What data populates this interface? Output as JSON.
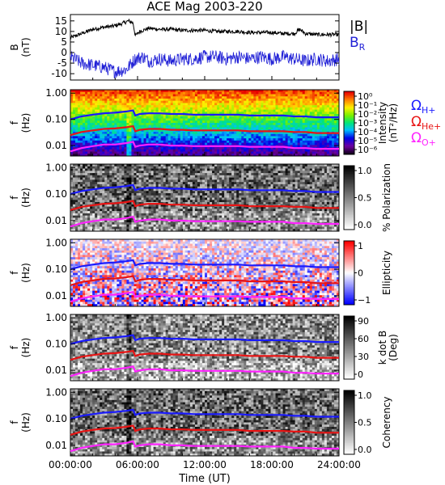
{
  "title": "ACE Mag 2003-220",
  "colors": {
    "Bmag": "#000000",
    "BR": "#1f1fd6",
    "H": "#1a1aff",
    "He": "#e81414",
    "O": "#ff22ff"
  },
  "chart_data": [
    {
      "type": "line",
      "panel": "B",
      "ylabel": "B",
      "yunit": "(nT)",
      "ylim": [
        -13,
        18
      ],
      "yticks": [
        "15",
        "10",
        "5",
        "0",
        "-5",
        "-10"
      ],
      "ytick_values": [
        15,
        10,
        5,
        0,
        -5,
        -10
      ],
      "legend_placement": "right",
      "series": [
        {
          "name": "|B|",
          "color": "#000000",
          "x": [
            0,
            1,
            2,
            3,
            3.8,
            4.5,
            5.2,
            5.6,
            5.8,
            6.2,
            7,
            8,
            9,
            10,
            11,
            12,
            13,
            14,
            15,
            16,
            17,
            18,
            19,
            20,
            20.5,
            21,
            22,
            23,
            24
          ],
          "y": [
            7,
            9,
            11,
            12,
            12.5,
            13.5,
            15,
            14,
            8,
            10,
            11.5,
            11,
            11,
            10.5,
            10.5,
            10.5,
            10,
            10,
            10,
            9.5,
            9.5,
            9.5,
            9,
            9,
            11,
            9,
            8.5,
            8.5,
            8.5
          ]
        },
        {
          "name": "B",
          "subscript": "R",
          "color": "#1f1fd6",
          "x": [
            0,
            1,
            2,
            3,
            4,
            5,
            5.8,
            6.5,
            7,
            8,
            9,
            10,
            11,
            12,
            13,
            14,
            15,
            16,
            17,
            18,
            19,
            20,
            21,
            22,
            23,
            24
          ],
          "y": [
            -2,
            -5,
            -6,
            -7,
            -9,
            -8,
            -3,
            -2,
            -4,
            -3,
            -4,
            -3,
            -3,
            -2,
            -2,
            -3,
            -2,
            -3,
            -2,
            -3,
            -2,
            -3,
            -4,
            -3,
            -4,
            -3
          ]
        }
      ]
    },
    {
      "type": "heatmap",
      "panel": "intensity",
      "ylabel": "f",
      "yunit": "(Hz)",
      "yticks": [
        "1.00",
        "0.10",
        "0.01"
      ],
      "colorbar_label": "Intensity",
      "colorbar_unit": "(nT²/Hz)",
      "colorbar_ticks": [
        "10⁰",
        "10⁻¹",
        "10⁻²",
        "10⁻³",
        "10⁻⁴",
        "10⁻⁵",
        "10⁻⁶"
      ],
      "colorscale": "rainbow",
      "legend": [
        {
          "symbol": "Ω",
          "subscript": "H+",
          "color": "#1a1aff"
        },
        {
          "symbol": "Ω",
          "subscript": "He+",
          "color": "#e81414"
        },
        {
          "symbol": "Ω",
          "subscript": "O+",
          "color": "#ff22ff"
        }
      ]
    },
    {
      "type": "heatmap",
      "panel": "polarization",
      "ylabel": "f",
      "yunit": "(Hz)",
      "yticks": [
        "1.00",
        "0.10",
        "0.01"
      ],
      "colorbar_label": "% Polarization",
      "colorbar_ticks": [
        "1.0",
        "0.5",
        "0.0"
      ],
      "colorscale": "gray"
    },
    {
      "type": "heatmap",
      "panel": "ellipticity",
      "ylabel": "f",
      "yunit": "(Hz)",
      "yticks": [
        "1.00",
        "0.10",
        "0.01"
      ],
      "colorbar_label": "Ellipticity",
      "colorbar_ticks": [
        "1",
        "0",
        "−1"
      ],
      "colorscale": "blue-white-red"
    },
    {
      "type": "heatmap",
      "panel": "kdotb",
      "ylabel": "f",
      "yunit": "(Hz)",
      "yticks": [
        "1.00",
        "0.10",
        "0.01"
      ],
      "colorbar_label": "k dot B",
      "colorbar_unit": "(Deg)",
      "colorbar_ticks": [
        "90",
        "60",
        "30",
        "0"
      ],
      "colorscale": "gray"
    },
    {
      "type": "heatmap",
      "panel": "coherency",
      "ylabel": "f",
      "yunit": "(Hz)",
      "yticks": [
        "1.00",
        "0.10",
        "0.01"
      ],
      "colorbar_label": "Coherency",
      "colorbar_ticks": [
        "1.0",
        "0.5",
        "0.0"
      ],
      "colorscale": "gray"
    }
  ],
  "gyrofrequency_lines": {
    "x": [
      0,
      1,
      2,
      3,
      4,
      5,
      5.6,
      5.8,
      6.2,
      7,
      8,
      9,
      10,
      11,
      12,
      13,
      14,
      15,
      16,
      17,
      18,
      19,
      20,
      21,
      22,
      23,
      24
    ],
    "H_hz": [
      0.1,
      0.13,
      0.15,
      0.17,
      0.18,
      0.2,
      0.22,
      0.14,
      0.16,
      0.17,
      0.17,
      0.16,
      0.16,
      0.15,
      0.15,
      0.15,
      0.15,
      0.15,
      0.14,
      0.14,
      0.14,
      0.14,
      0.13,
      0.13,
      0.12,
      0.12,
      0.12
    ],
    "He_hz": [
      0.025,
      0.033,
      0.038,
      0.043,
      0.045,
      0.05,
      0.055,
      0.035,
      0.04,
      0.043,
      0.043,
      0.04,
      0.04,
      0.038,
      0.038,
      0.038,
      0.038,
      0.038,
      0.035,
      0.035,
      0.035,
      0.035,
      0.033,
      0.033,
      0.03,
      0.03,
      0.03
    ],
    "O_hz": [
      0.006,
      0.008,
      0.0095,
      0.011,
      0.011,
      0.0125,
      0.014,
      0.009,
      0.01,
      0.011,
      0.011,
      0.01,
      0.01,
      0.0095,
      0.0095,
      0.0095,
      0.0095,
      0.0095,
      0.009,
      0.009,
      0.009,
      0.009,
      0.008,
      0.008,
      0.0075,
      0.0075,
      0.0075
    ]
  },
  "xaxis": {
    "label": "Time (UT)",
    "ticks": [
      "00:00:00",
      "06:00:00",
      "12:00:00",
      "18:00:00",
      "24:00:00"
    ],
    "tick_hours": [
      0,
      6,
      12,
      18,
      24
    ],
    "xlim": [
      0,
      24
    ]
  }
}
